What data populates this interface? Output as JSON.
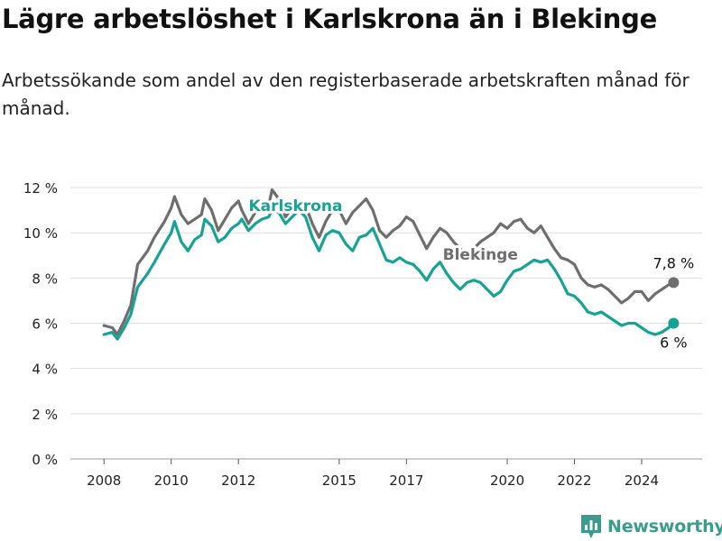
{
  "title": "Lägre arbetslöshet i Karlskrona än i Blekinge",
  "subtitle": "Arbetssökande som andel av den registerbaserade arbetskraften månad för månad.",
  "brand": {
    "name": "Newsworthy",
    "icon": "bar-chart-logo-icon",
    "color": "#3a9c8b"
  },
  "chart_data": {
    "type": "line",
    "x_unit": "year (decimal)",
    "ylim": [
      0,
      12
    ],
    "y_ticks": [
      {
        "value": 0,
        "label": "0 %"
      },
      {
        "value": 2,
        "label": "2 %"
      },
      {
        "value": 4,
        "label": "4 %"
      },
      {
        "value": 6,
        "label": "6 %"
      },
      {
        "value": 8,
        "label": "8 %"
      },
      {
        "value": 10,
        "label": "10 %"
      },
      {
        "value": 12,
        "label": "12 %"
      }
    ],
    "x_ticks": [
      {
        "value": 2008,
        "label": "2008"
      },
      {
        "value": 2010,
        "label": "2010"
      },
      {
        "value": 2012,
        "label": "2012"
      },
      {
        "value": 2015,
        "label": "2015"
      },
      {
        "value": 2017,
        "label": "2017"
      },
      {
        "value": 2020,
        "label": "2020"
      },
      {
        "value": 2022,
        "label": "2022"
      },
      {
        "value": 2024,
        "label": "2024"
      }
    ],
    "grid": true,
    "series": [
      {
        "name": "Blekinge",
        "color": "#6e6e6e",
        "end_label": "7,8 %",
        "x": [
          2008.0,
          2008.25,
          2008.4,
          2008.6,
          2008.8,
          2009.0,
          2009.3,
          2009.5,
          2009.8,
          2010.0,
          2010.1,
          2010.3,
          2010.5,
          2010.7,
          2010.9,
          2011.0,
          2011.2,
          2011.4,
          2011.6,
          2011.8,
          2012.0,
          2012.1,
          2012.3,
          2012.5,
          2012.7,
          2012.9,
          2013.0,
          2013.2,
          2013.4,
          2013.6,
          2013.8,
          2014.0,
          2014.2,
          2014.4,
          2014.6,
          2014.8,
          2015.0,
          2015.2,
          2015.4,
          2015.6,
          2015.8,
          2016.0,
          2016.2,
          2016.4,
          2016.6,
          2016.8,
          2017.0,
          2017.2,
          2017.4,
          2017.6,
          2017.8,
          2018.0,
          2018.2,
          2018.4,
          2018.6,
          2018.8,
          2019.0,
          2019.2,
          2019.4,
          2019.6,
          2019.8,
          2020.0,
          2020.2,
          2020.4,
          2020.6,
          2020.8,
          2021.0,
          2021.2,
          2021.4,
          2021.6,
          2021.8,
          2022.0,
          2022.2,
          2022.4,
          2022.6,
          2022.8,
          2023.0,
          2023.2,
          2023.4,
          2023.6,
          2023.8,
          2024.0,
          2024.2,
          2024.4,
          2024.6,
          2024.8,
          2024.95
        ],
        "values": [
          5.9,
          5.8,
          5.5,
          6.1,
          6.8,
          8.6,
          9.2,
          9.8,
          10.5,
          11.1,
          11.6,
          10.8,
          10.4,
          10.6,
          10.8,
          11.5,
          11.0,
          10.1,
          10.6,
          11.1,
          11.4,
          11.0,
          10.4,
          10.9,
          11.0,
          11.2,
          11.9,
          11.5,
          10.7,
          11.1,
          11.4,
          11.2,
          10.4,
          9.8,
          10.5,
          11.0,
          11.0,
          10.4,
          10.9,
          11.2,
          11.5,
          11.0,
          10.1,
          9.8,
          10.1,
          10.3,
          10.7,
          10.5,
          9.9,
          9.3,
          9.8,
          10.2,
          10.0,
          9.6,
          9.3,
          9.0,
          9.3,
          9.6,
          9.8,
          10.0,
          10.4,
          10.2,
          10.5,
          10.6,
          10.2,
          10.0,
          10.3,
          9.8,
          9.3,
          8.9,
          8.8,
          8.6,
          8.0,
          7.7,
          7.6,
          7.7,
          7.5,
          7.2,
          6.9,
          7.1,
          7.4,
          7.4,
          7.0,
          7.3,
          7.5,
          7.7,
          7.8
        ]
      },
      {
        "name": "Karlskrona",
        "color": "#16a393",
        "end_label": "6 %",
        "x": [
          2008.0,
          2008.25,
          2008.4,
          2008.6,
          2008.8,
          2009.0,
          2009.3,
          2009.5,
          2009.8,
          2010.0,
          2010.1,
          2010.3,
          2010.5,
          2010.7,
          2010.9,
          2011.0,
          2011.2,
          2011.4,
          2011.6,
          2011.8,
          2012.0,
          2012.1,
          2012.3,
          2012.5,
          2012.7,
          2012.9,
          2013.0,
          2013.2,
          2013.4,
          2013.6,
          2013.8,
          2014.0,
          2014.2,
          2014.4,
          2014.6,
          2014.8,
          2015.0,
          2015.2,
          2015.4,
          2015.6,
          2015.8,
          2016.0,
          2016.2,
          2016.4,
          2016.6,
          2016.8,
          2017.0,
          2017.2,
          2017.4,
          2017.6,
          2017.8,
          2018.0,
          2018.2,
          2018.4,
          2018.6,
          2018.8,
          2019.0,
          2019.2,
          2019.4,
          2019.6,
          2019.8,
          2020.0,
          2020.2,
          2020.4,
          2020.6,
          2020.8,
          2021.0,
          2021.2,
          2021.4,
          2021.6,
          2021.8,
          2022.0,
          2022.2,
          2022.4,
          2022.6,
          2022.8,
          2023.0,
          2023.2,
          2023.4,
          2023.6,
          2023.8,
          2024.0,
          2024.2,
          2024.4,
          2024.6,
          2024.8,
          2024.95
        ],
        "values": [
          5.5,
          5.6,
          5.3,
          5.8,
          6.4,
          7.6,
          8.2,
          8.7,
          9.5,
          10.0,
          10.5,
          9.6,
          9.2,
          9.7,
          9.9,
          10.6,
          10.3,
          9.6,
          9.8,
          10.2,
          10.4,
          10.6,
          10.1,
          10.4,
          10.6,
          10.7,
          11.0,
          10.9,
          10.4,
          10.7,
          11.0,
          10.7,
          9.8,
          9.2,
          9.9,
          10.1,
          10.0,
          9.5,
          9.2,
          9.8,
          9.9,
          10.2,
          9.5,
          8.8,
          8.7,
          8.9,
          8.7,
          8.6,
          8.3,
          7.9,
          8.4,
          8.7,
          8.2,
          7.8,
          7.5,
          7.8,
          7.9,
          7.8,
          7.5,
          7.2,
          7.4,
          7.9,
          8.3,
          8.4,
          8.6,
          8.8,
          8.7,
          8.8,
          8.4,
          7.9,
          7.3,
          7.2,
          6.9,
          6.5,
          6.4,
          6.5,
          6.3,
          6.1,
          5.9,
          6.0,
          6.0,
          5.8,
          5.6,
          5.5,
          5.6,
          5.8,
          6.0
        ]
      }
    ]
  }
}
